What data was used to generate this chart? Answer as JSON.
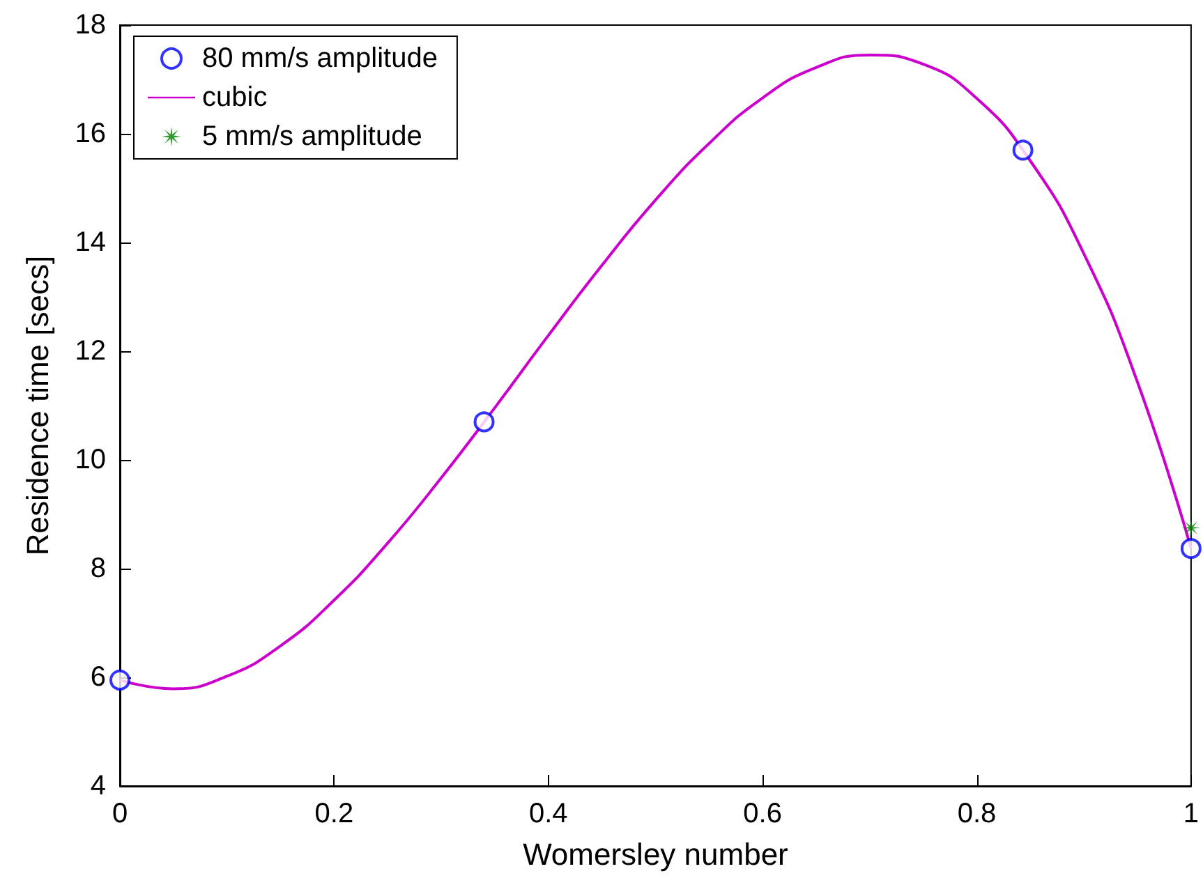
{
  "chart_data": {
    "type": "scatter",
    "xlabel": "Womersley number",
    "ylabel": "Residence time [secs]",
    "xlim": [
      0,
      1
    ],
    "xticks": [
      0,
      0.2,
      0.4,
      0.6,
      0.8,
      1
    ],
    "ylim": [
      4,
      18
    ],
    "yticks": [
      4,
      6,
      8,
      10,
      12,
      14,
      16,
      18
    ],
    "grid": false,
    "legend": "top left",
    "series": [
      {
        "name": "80 mm/s amplitude",
        "marker": "circle",
        "color": "#0000ff",
        "x": [
          0,
          0.34,
          0.843,
          1
        ],
        "values": [
          5.95,
          10.7,
          15.7,
          8.37
        ]
      },
      {
        "name": "cubic",
        "type": "line",
        "marker": "none",
        "color": "#cc00cc",
        "x": [
          0,
          0.05,
          0.1,
          0.15,
          0.2,
          0.25,
          0.3,
          0.35,
          0.4,
          0.45,
          0.5,
          0.55,
          0.6,
          0.65,
          0.7,
          0.75,
          0.8,
          0.85,
          0.9,
          0.95,
          1
        ],
        "values": [
          5.95,
          5.79,
          6.02,
          6.58,
          7.42,
          8.47,
          9.67,
          10.96,
          12.29,
          13.58,
          14.78,
          15.82,
          16.66,
          17.22,
          17.45,
          17.28,
          16.65,
          15.5,
          13.79,
          11.43,
          8.37
        ]
      },
      {
        "name": "5 mm/s amplitude",
        "marker": "star",
        "color": "#008000",
        "x": [
          1
        ],
        "values": [
          8.75
        ]
      }
    ]
  }
}
